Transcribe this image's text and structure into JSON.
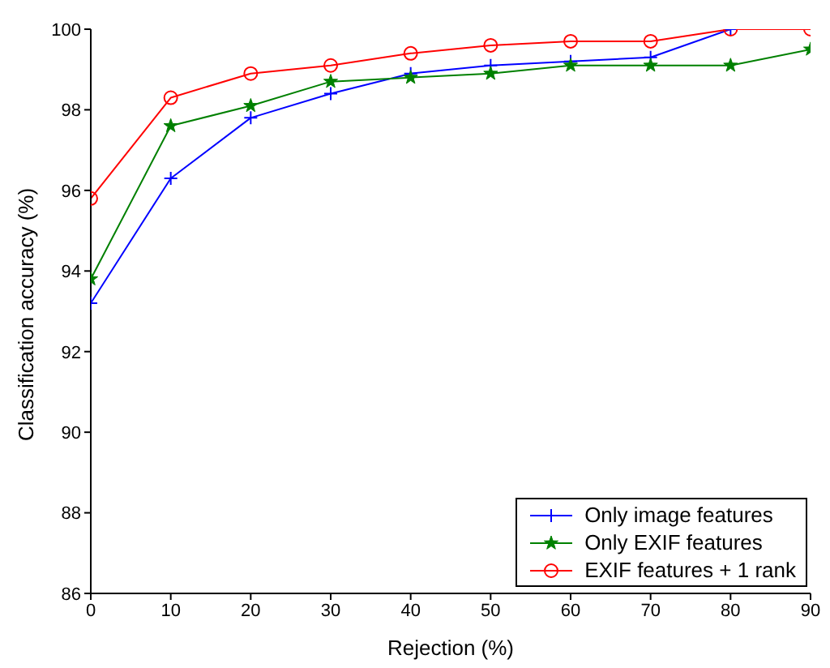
{
  "chart_data": {
    "type": "line",
    "xlabel": "Rejection (%)",
    "ylabel": "Classification accuracy (%)",
    "x": [
      0,
      10,
      20,
      30,
      40,
      50,
      60,
      70,
      80,
      90
    ],
    "series": [
      {
        "name": "Only image features",
        "color": "#0000ff",
        "marker": "cross",
        "values": [
          93.2,
          96.3,
          97.8,
          98.4,
          98.9,
          99.1,
          99.2,
          99.3,
          100,
          null
        ]
      },
      {
        "name": "Only EXIF features",
        "color": "#008000",
        "marker": "star",
        "values": [
          93.8,
          97.6,
          98.1,
          98.7,
          98.8,
          98.9,
          99.1,
          99.1,
          99.1,
          99.5
        ]
      },
      {
        "name": "EXIF features + 1 rank",
        "color": "#ff0000",
        "marker": "circle",
        "values": [
          95.8,
          98.3,
          98.9,
          99.1,
          99.4,
          99.6,
          99.7,
          99.7,
          100,
          100
        ]
      }
    ],
    "xlim": [
      0,
      90
    ],
    "xticks": [
      0,
      10,
      20,
      30,
      40,
      50,
      60,
      70,
      80,
      90
    ],
    "ylim": [
      86,
      100
    ],
    "yticks": [
      86,
      88,
      90,
      92,
      94,
      96,
      98,
      100
    ],
    "grid": false,
    "legend": "bottom right",
    "line_style": "solid"
  }
}
